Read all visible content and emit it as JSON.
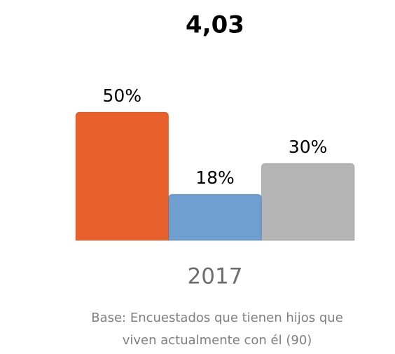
{
  "chart_data": {
    "type": "bar",
    "title": "4,03",
    "categories": [
      "2017"
    ],
    "series": [
      {
        "color": "#e8602c",
        "values": [
          50
        ],
        "value_labels": [
          "50%"
        ]
      },
      {
        "color": "#6f9fd1",
        "values": [
          18
        ],
        "value_labels": [
          "18%"
        ]
      },
      {
        "color": "#b4b4b4",
        "values": [
          30
        ],
        "value_labels": [
          "30%"
        ]
      }
    ],
    "note": "Base: Encuestados que tienen hijos que viven actualmente con él (90)"
  }
}
